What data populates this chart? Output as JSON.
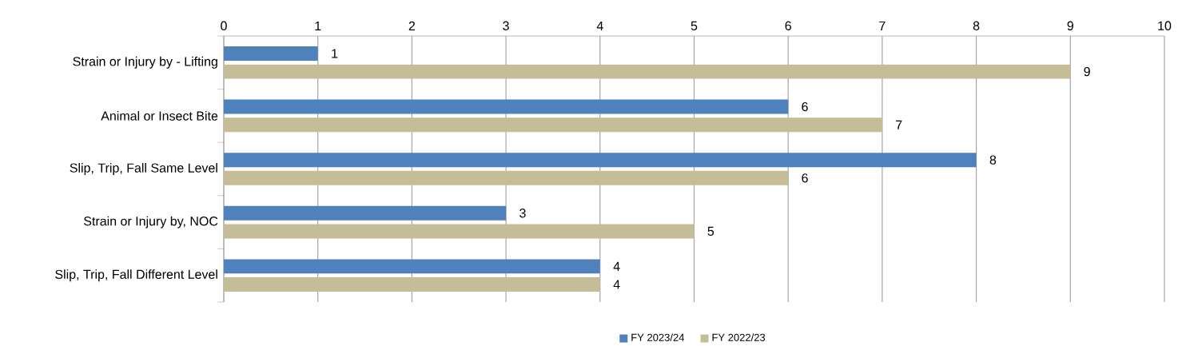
{
  "chart_data": {
    "type": "bar",
    "orientation": "horizontal",
    "categories": [
      "Strain or Injury by - Lifting",
      "Animal or Insect Bite",
      "Slip, Trip, Fall Same Level",
      "Strain or Injury by, NOC",
      "Slip, Trip, Fall Different Level"
    ],
    "series": [
      {
        "name": "FY 2023/24",
        "color": "#4f81bd",
        "values": [
          1,
          6,
          8,
          3,
          4
        ]
      },
      {
        "name": "FY 2022/23",
        "color": "#c4bd97",
        "values": [
          9,
          7,
          6,
          5,
          4
        ]
      }
    ],
    "xlim": [
      0,
      10
    ],
    "xticks": [
      0,
      1,
      2,
      3,
      4,
      5,
      6,
      7,
      8,
      9,
      10
    ],
    "grid": "x",
    "legend": "bottom",
    "data_labels": true
  }
}
